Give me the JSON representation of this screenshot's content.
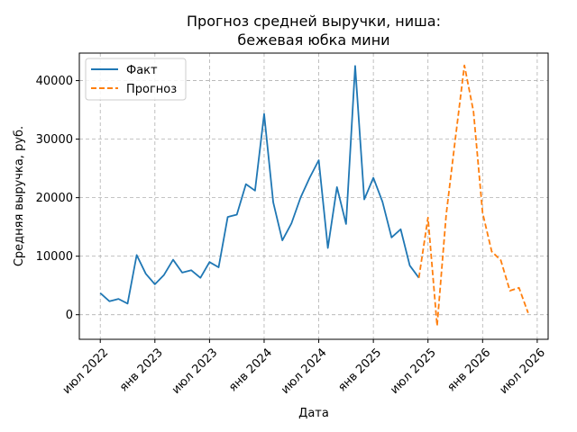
{
  "chart_data": {
    "type": "line",
    "title_lines": [
      "Прогноз средней выручки, ниша:",
      "бежевая юбка мини"
    ],
    "xlabel": "Дата",
    "ylabel": "Средняя выручка, руб.",
    "grid": true,
    "legend_position": "top-left",
    "x_ticks": [
      {
        "label": "июл 2022",
        "index": 0
      },
      {
        "label": "янв 2023",
        "index": 6
      },
      {
        "label": "июл 2023",
        "index": 12
      },
      {
        "label": "янв 2024",
        "index": 18
      },
      {
        "label": "июл 2024",
        "index": 24
      },
      {
        "label": "янв 2025",
        "index": 30
      },
      {
        "label": "июл 2025",
        "index": 36
      },
      {
        "label": "янв 2026",
        "index": 42
      },
      {
        "label": "июл 2026",
        "index": 48
      }
    ],
    "y_ticks": [
      0,
      10000,
      20000,
      30000,
      40000
    ],
    "xlim": [
      -2.3,
      49.2
    ],
    "ylim": [
      -4200,
      44700
    ],
    "series": [
      {
        "name": "Факт",
        "color": "#1f77b4",
        "style": "solid",
        "points": [
          [
            0,
            3700
          ],
          [
            1,
            2300
          ],
          [
            2,
            2700
          ],
          [
            3,
            1900
          ],
          [
            4,
            10200
          ],
          [
            5,
            7000
          ],
          [
            6,
            5200
          ],
          [
            7,
            6800
          ],
          [
            8,
            9400
          ],
          [
            9,
            7200
          ],
          [
            10,
            7600
          ],
          [
            11,
            6300
          ],
          [
            12,
            9000
          ],
          [
            13,
            8100
          ],
          [
            14,
            16700
          ],
          [
            15,
            17100
          ],
          [
            16,
            22300
          ],
          [
            17,
            21200
          ],
          [
            18,
            34300
          ],
          [
            19,
            19200
          ],
          [
            20,
            12700
          ],
          [
            21,
            15600
          ],
          [
            22,
            20000
          ],
          [
            23,
            23400
          ],
          [
            24,
            26400
          ],
          [
            25,
            11400
          ],
          [
            26,
            21800
          ],
          [
            27,
            15500
          ],
          [
            28,
            42500
          ],
          [
            29,
            19700
          ],
          [
            30,
            23400
          ],
          [
            31,
            19300
          ],
          [
            32,
            13200
          ],
          [
            33,
            14600
          ],
          [
            34,
            8400
          ],
          [
            35,
            6300
          ]
        ]
      },
      {
        "name": "Прогноз",
        "color": "#ff7f0e",
        "style": "dashed",
        "points": [
          [
            35,
            6300
          ],
          [
            36,
            16600
          ],
          [
            37,
            -1900
          ],
          [
            38,
            17100
          ],
          [
            39,
            30000
          ],
          [
            40,
            42600
          ],
          [
            41,
            34700
          ],
          [
            42,
            17400
          ],
          [
            43,
            10800
          ],
          [
            44,
            9300
          ],
          [
            45,
            4100
          ],
          [
            46,
            4600
          ],
          [
            47,
            300
          ]
        ]
      }
    ]
  }
}
